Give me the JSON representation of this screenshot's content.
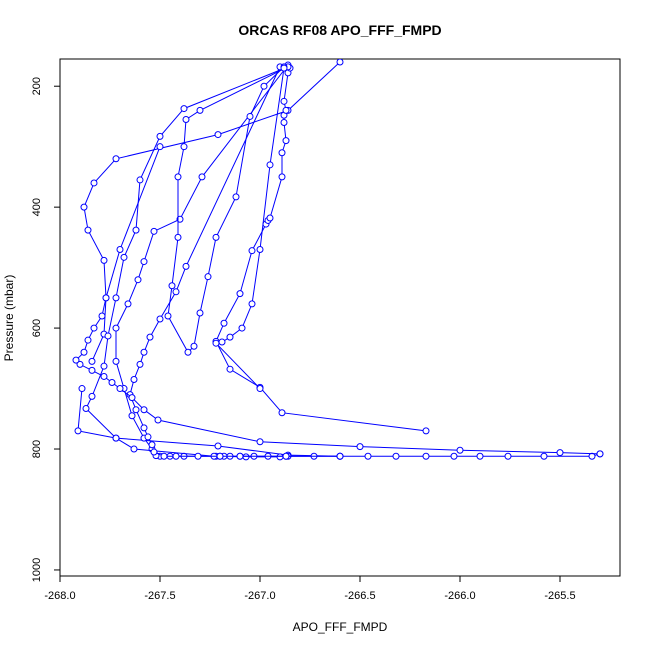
{
  "chart_data": {
    "type": "scatter",
    "title": "ORCAS RF08 APO_FFF_FMPD",
    "xlabel": "APO_FFF_FMPD",
    "ylabel": "Pressure (mbar)",
    "xlim": [
      -268.0,
      -265.2
    ],
    "ylim": [
      1010,
      155
    ],
    "y_reversed": true,
    "xticks": [
      -268.0,
      -267.5,
      -267.0,
      -266.5,
      -266.0,
      -265.5
    ],
    "xtick_labels": [
      "-268.0",
      "-267.5",
      "-267.0",
      "-266.5",
      "-266.0",
      "-265.5"
    ],
    "yticks": [
      200,
      400,
      600,
      800,
      1000
    ],
    "ytick_labels": [
      "200",
      "400",
      "600",
      "800",
      "1000"
    ],
    "grid": false,
    "legend": "none",
    "marker": "open-circle",
    "color": "#0000ff",
    "series": [
      {
        "x": [
          -267.84,
          -267.78,
          -267.77,
          -267.78,
          -267.86,
          -267.88,
          -267.83,
          -267.72,
          -267.21,
          -266.86,
          -266.6
        ],
        "y": [
          655,
          610,
          550,
          488,
          438,
          400,
          360,
          320,
          280,
          240,
          160
        ]
      },
      {
        "x": [
          -266.6,
          -266.86,
          -267.21,
          -267.72,
          -267.87,
          -267.84,
          -267.78,
          -267.76,
          -267.72,
          -267.68,
          -267.62,
          -267.6,
          -267.5,
          -267.38,
          -266.86
        ],
        "y": [
          812,
          810,
          795,
          782,
          733,
          713,
          663,
          613,
          550,
          483,
          438,
          355,
          283,
          237,
          168
        ]
      },
      {
        "x": [
          -266.86,
          -266.9,
          -267.07,
          -267.22,
          -267.38,
          -267.45,
          -267.5,
          -267.52,
          -267.54,
          -267.58,
          -267.64,
          -267.68,
          -267.72,
          -267.72,
          -267.66,
          -267.61,
          -267.58,
          -267.53,
          -267.4,
          -267.29,
          -266.86
        ],
        "y": [
          812,
          813,
          813,
          812,
          812,
          812,
          812,
          811,
          800,
          782,
          745,
          700,
          655,
          600,
          560,
          520,
          490,
          440,
          420,
          350,
          165
        ]
      },
      {
        "x": [
          -265.3,
          -265.34,
          -265.58,
          -265.76,
          -265.9,
          -266.03,
          -266.17,
          -266.32,
          -266.46,
          -266.6,
          -266.73,
          -266.87,
          -266.96,
          -267.03,
          -267.1,
          -267.15,
          -267.18,
          -267.2,
          -267.23,
          -267.63,
          -267.72,
          -267.91,
          -267.89
        ],
        "y": [
          808,
          812,
          812,
          812,
          812,
          812,
          812,
          812,
          812,
          812,
          812,
          812,
          812,
          812,
          812,
          812,
          812,
          812,
          812,
          800,
          782,
          770,
          700
        ]
      },
      {
        "x": [
          -266.6,
          -266.87,
          -267.1,
          -267.2,
          -267.31,
          -267.42,
          -267.48,
          -267.53,
          -267.54,
          -267.56,
          -267.58,
          -267.62,
          -267.65,
          -267.63,
          -267.6,
          -267.58,
          -267.55,
          -267.5,
          -267.42,
          -267.37,
          -266.9
        ],
        "y": [
          812,
          812,
          812,
          812,
          812,
          812,
          812,
          805,
          793,
          780,
          765,
          735,
          710,
          685,
          660,
          640,
          615,
          585,
          540,
          498,
          168
        ]
      },
      {
        "x": [
          -266.17,
          -266.89,
          -267.0,
          -267.15,
          -267.22,
          -267.18,
          -267.1,
          -267.04,
          -266.97,
          -266.96,
          -266.95,
          -266.89,
          -266.89,
          -266.87,
          -266.88,
          -266.88,
          -266.87,
          -266.88,
          -266.86,
          -266.85
        ],
        "y": [
          770,
          740,
          698,
          668,
          622,
          592,
          543,
          472,
          428,
          422,
          418,
          350,
          310,
          290,
          260,
          248,
          240,
          225,
          178,
          170
        ]
      },
      {
        "x": [
          -265.3,
          -265.5,
          -266.0,
          -266.5,
          -267.0,
          -267.51,
          -267.58,
          -267.64,
          -267.7,
          -267.74,
          -267.78,
          -267.84,
          -267.9,
          -267.92,
          -267.88,
          -267.86,
          -267.83,
          -267.79,
          -267.77,
          -267.7,
          -267.5
        ],
        "y": [
          808,
          806,
          802,
          796,
          788,
          752,
          735,
          715,
          700,
          690,
          680,
          670,
          660,
          653,
          640,
          620,
          600,
          580,
          550,
          470,
          300
        ]
      },
      {
        "x": [
          -266.86,
          -267.3,
          -267.37,
          -267.38,
          -267.41,
          -267.41,
          -267.44,
          -267.46,
          -267.36,
          -267.33,
          -267.3,
          -267.26,
          -267.22,
          -267.12,
          -267.05,
          -266.98,
          -266.88
        ],
        "y": [
          168,
          240,
          255,
          300,
          350,
          450,
          530,
          580,
          640,
          630,
          575,
          515,
          450,
          383,
          250,
          200,
          168
        ]
      },
      {
        "x": [
          -266.88,
          -266.95,
          -267.0,
          -267.04,
          -267.09,
          -267.15,
          -267.19,
          -267.22,
          -267.0
        ],
        "y": [
          170,
          330,
          470,
          560,
          600,
          615,
          623,
          625,
          700
        ]
      }
    ]
  }
}
